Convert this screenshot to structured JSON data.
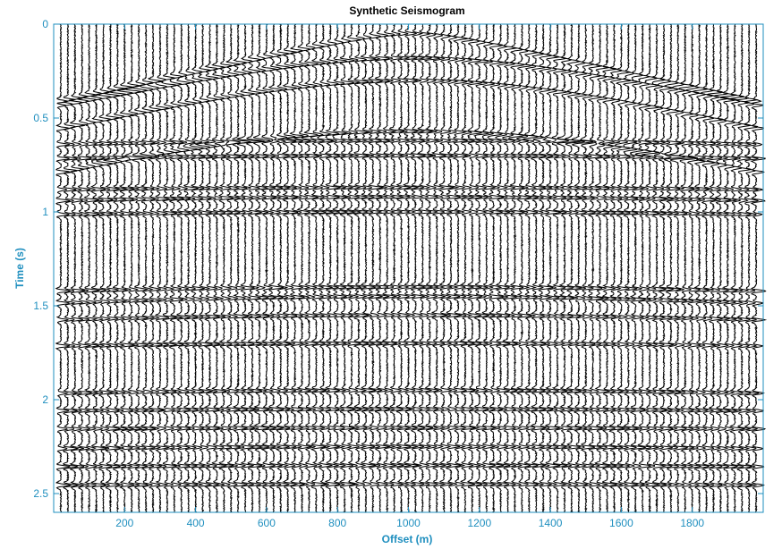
{
  "chart_data": {
    "type": "seismogram",
    "title": "Synthetic Seismogram",
    "xlabel": "Offset (m)",
    "ylabel": "Time (s)",
    "xlim": [
      0,
      2000
    ],
    "ylim": [
      0,
      2.6
    ],
    "y_reversed": true,
    "x_ticks": [
      200,
      400,
      600,
      800,
      1000,
      1200,
      1400,
      1600,
      1800
    ],
    "x_tick_labels": [
      "200",
      "400",
      "600",
      "800",
      "1000",
      "1200",
      "1400",
      "1600",
      "1800"
    ],
    "y_ticks": [
      0,
      0.5,
      1,
      1.5,
      2,
      2.5
    ],
    "y_tick_labels": [
      "0",
      "0.5",
      "1",
      "1.5",
      "2",
      "2.5"
    ],
    "grid": false,
    "source_offset": 1000,
    "trace_spacing": 20,
    "trace_first_offset": 20,
    "trace_last_offset": 1980,
    "reflections": [
      {
        "t0": 0.05,
        "velocity": 2400
      },
      {
        "t0": 0.18,
        "velocity": 2500
      },
      {
        "t0": 0.3,
        "velocity": 2100
      },
      {
        "t0": 0.57,
        "velocity": 1800
      },
      {
        "t0": 0.62,
        "velocity": 6000
      },
      {
        "t0": 0.7,
        "velocity": 6500
      },
      {
        "t0": 0.87,
        "velocity": 7000
      },
      {
        "t0": 0.92,
        "velocity": 5000
      },
      {
        "t0": 1.0,
        "velocity": 6000
      },
      {
        "t0": 1.4,
        "velocity": 4000
      },
      {
        "t0": 1.45,
        "velocity": 3000
      },
      {
        "t0": 1.55,
        "velocity": 3500
      },
      {
        "t0": 1.7,
        "velocity": 4500
      },
      {
        "t0": 1.95,
        "velocity": 4000
      },
      {
        "t0": 2.05,
        "velocity": 5000
      },
      {
        "t0": 2.15,
        "velocity": 6000
      },
      {
        "t0": 2.25,
        "velocity": 4500
      },
      {
        "t0": 2.35,
        "velocity": 5500
      },
      {
        "t0": 2.45,
        "velocity": 6000
      }
    ],
    "trace_color": "#000000",
    "axis_color": "#1f8fbf"
  }
}
